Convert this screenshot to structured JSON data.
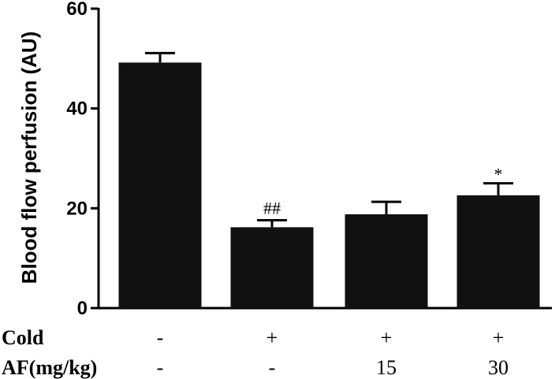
{
  "chart_data": {
    "type": "bar",
    "ylabel": "Blood flow perfusion (AU)",
    "ylim": [
      0,
      60
    ],
    "yticks": [
      0,
      20,
      40,
      60
    ],
    "grid": false,
    "bar_color": "#111111",
    "values": [
      49.2,
      16.2,
      18.8,
      22.6
    ],
    "errors": [
      1.9,
      1.4,
      2.5,
      2.4
    ],
    "significance": [
      "",
      "##",
      "",
      "*"
    ],
    "condition_rows": [
      {
        "label": "Cold",
        "values": [
          "-",
          "+",
          "+",
          "+"
        ]
      },
      {
        "label": "AF(mg/kg)",
        "values": [
          "-",
          "-",
          "15",
          "30"
        ]
      }
    ]
  }
}
